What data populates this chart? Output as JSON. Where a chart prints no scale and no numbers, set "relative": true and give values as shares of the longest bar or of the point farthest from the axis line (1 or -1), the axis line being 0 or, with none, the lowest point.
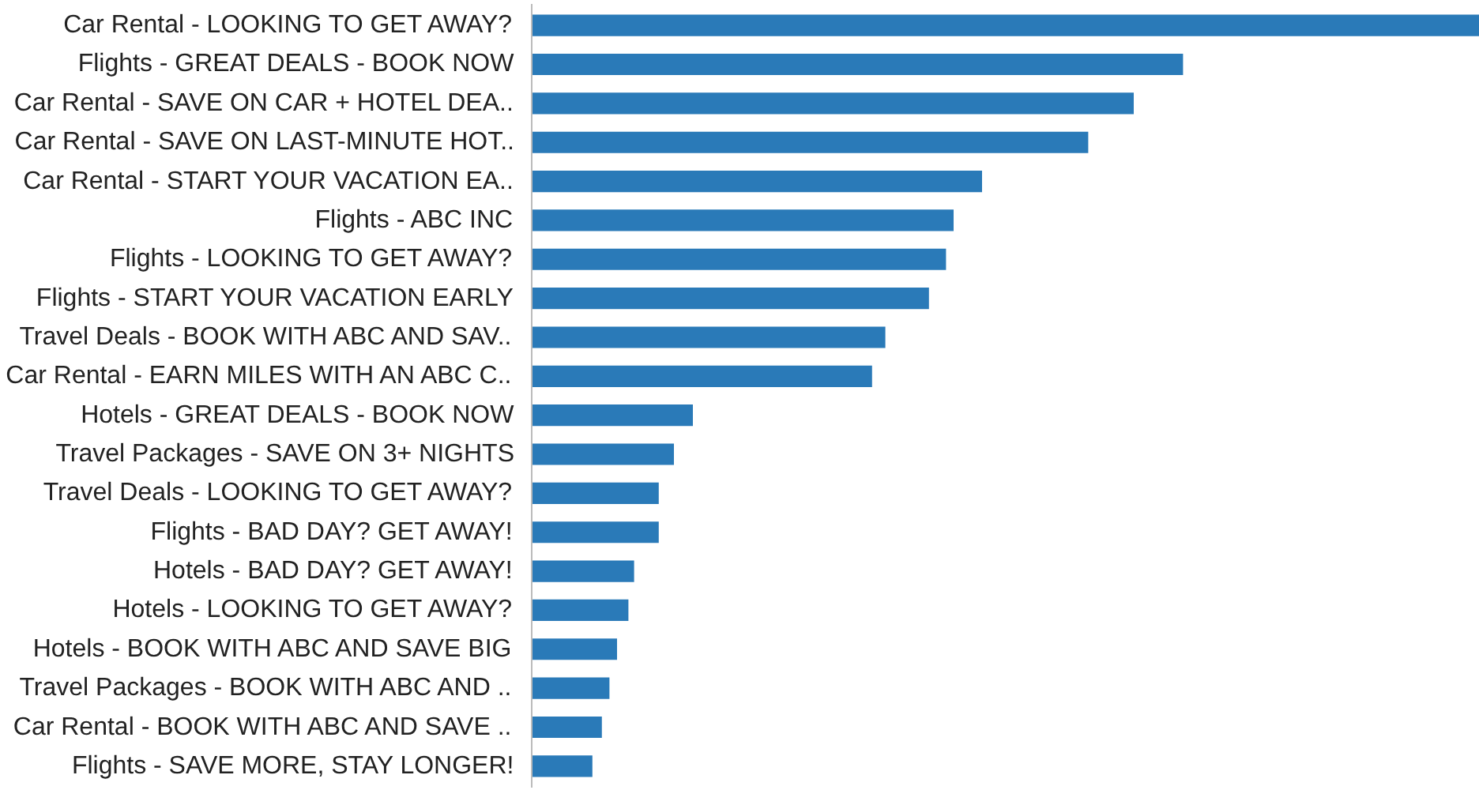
{
  "chart_data": {
    "type": "bar",
    "orientation": "horizontal",
    "relative": true,
    "color": "#2a7ab8",
    "grid": false,
    "categories": [
      "Car Rental - LOOKING TO GET AWAY?",
      "Flights - GREAT DEALS - BOOK NOW",
      "Car Rental - SAVE ON CAR + HOTEL DEA..",
      "Car Rental - SAVE ON LAST-MINUTE HOT..",
      "Car Rental - START YOUR VACATION EA..",
      "Flights - ABC INC",
      "Flights - LOOKING TO GET AWAY?",
      "Flights - START YOUR VACATION EARLY",
      "Travel Deals - BOOK WITH ABC AND SAV..",
      "Car Rental - EARN MILES WITH AN ABC C..",
      "Hotels - GREAT DEALS - BOOK NOW",
      "Travel Packages - SAVE ON 3+ NIGHTS",
      "Travel Deals - LOOKING TO GET AWAY?",
      "Flights - BAD DAY? GET AWAY!",
      "Hotels - BAD DAY? GET AWAY!",
      "Hotels - LOOKING TO GET AWAY?",
      "Hotels - BOOK WITH ABC AND SAVE BIG",
      "Travel Packages - BOOK WITH ABC AND ..",
      "Car Rental - BOOK WITH ABC AND SAVE ..",
      "Flights - SAVE MORE, STAY LONGER!"
    ],
    "values": [
      1,
      0.687,
      0.635,
      0.587,
      0.475,
      0.445,
      0.437,
      0.419,
      0.373,
      0.359,
      0.17,
      0.15,
      0.134,
      0.134,
      0.108,
      0.102,
      0.09,
      0.082,
      0.074,
      0.064
    ]
  }
}
